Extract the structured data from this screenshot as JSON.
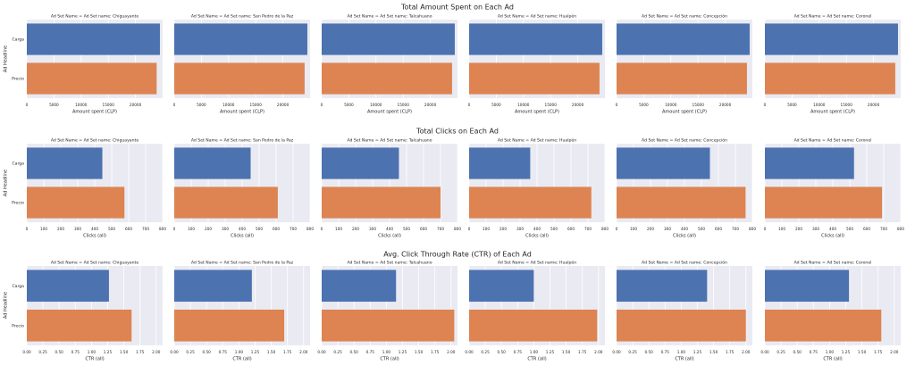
{
  "colors": {
    "carga": "#4c72b0",
    "precio": "#dd8452",
    "panel_bg": "#eaeaf2",
    "grid": "#ffffff"
  },
  "ylabel": "Ad Headline",
  "categories": [
    "Carga",
    "Precio"
  ],
  "chart_data": [
    {
      "type": "bar",
      "orientation": "horizontal",
      "title": "Total Amount Spent on Each Ad",
      "xlabel": "Amount spent (CLP)",
      "ylabel": "Ad Headline",
      "categories": [
        "Carga",
        "Precio"
      ],
      "xlim": [
        0,
        25000
      ],
      "xticks": [
        0,
        5000,
        10000,
        15000,
        20000
      ],
      "grid": true,
      "panels": [
        {
          "title": "Ad Set Name = Ad Set name: Chiguayante",
          "values": [
            24500,
            23900
          ]
        },
        {
          "title": "Ad Set Name = Ad Set name: San Pedro de la Paz",
          "values": [
            24500,
            24000
          ]
        },
        {
          "title": "Ad Set Name = Ad Set name: Talcahuano",
          "values": [
            24500,
            24000
          ]
        },
        {
          "title": "Ad Set Name = Ad Set name: Hualpén",
          "values": [
            24500,
            24000
          ]
        },
        {
          "title": "Ad Set Name = Ad Set name: Concepción",
          "values": [
            24500,
            24000
          ]
        },
        {
          "title": "Ad Set Name = Ad Set name: Coronel",
          "values": [
            24500,
            24000
          ]
        }
      ]
    },
    {
      "type": "bar",
      "orientation": "horizontal",
      "title": "Total Clicks on Each Ad",
      "xlabel": "Clicks (all)",
      "ylabel": "Ad Headline",
      "categories": [
        "Carga",
        "Precio"
      ],
      "xlim": [
        0,
        800
      ],
      "xticks": [
        0,
        100,
        200,
        300,
        400,
        500,
        600,
        700,
        800
      ],
      "grid": true,
      "panels": [
        {
          "title": "Ad Set Name = Ad Set name: Chiguayante",
          "values": [
            445,
            575
          ]
        },
        {
          "title": "Ad Set Name = Ad Set name: San Pedro de la Paz",
          "values": [
            450,
            610
          ]
        },
        {
          "title": "Ad Set Name = Ad Set name: Talcahuano",
          "values": [
            455,
            700
          ]
        },
        {
          "title": "Ad Set Name = Ad Set name: Hualpén",
          "values": [
            360,
            720
          ]
        },
        {
          "title": "Ad Set Name = Ad Set name: Concepción",
          "values": [
            550,
            760
          ]
        },
        {
          "title": "Ad Set Name = Ad Set name: Coronel",
          "values": [
            525,
            690
          ]
        }
      ]
    },
    {
      "type": "bar",
      "orientation": "horizontal",
      "title": "Avg. Click Through Rate (CTR) of Each Ad",
      "xlabel": "CTR (all)",
      "ylabel": "Ad Headline",
      "categories": [
        "Carga",
        "Precio"
      ],
      "xlim": [
        0,
        2.1
      ],
      "xticks": [
        "0.00",
        "0.25",
        "0.50",
        "0.75",
        "1.00",
        "1.25",
        "1.50",
        "1.75",
        "2.00"
      ],
      "grid": true,
      "panels": [
        {
          "title": "Ad Set Name = Ad Set name: Chiguayante",
          "values": [
            1.27,
            1.62
          ]
        },
        {
          "title": "Ad Set Name = Ad Set name: San Pedro de la Paz",
          "values": [
            1.2,
            1.7
          ]
        },
        {
          "title": "Ad Set Name = Ad Set name: Talcahuano",
          "values": [
            1.15,
            2.05
          ]
        },
        {
          "title": "Ad Set Name = Ad Set name: Hualpén",
          "values": [
            1.0,
            1.98
          ]
        },
        {
          "title": "Ad Set Name = Ad Set name: Concepción",
          "values": [
            1.4,
            2.0
          ]
        },
        {
          "title": "Ad Set Name = Ad Set name: Coronel",
          "values": [
            1.3,
            1.8
          ]
        }
      ]
    }
  ]
}
